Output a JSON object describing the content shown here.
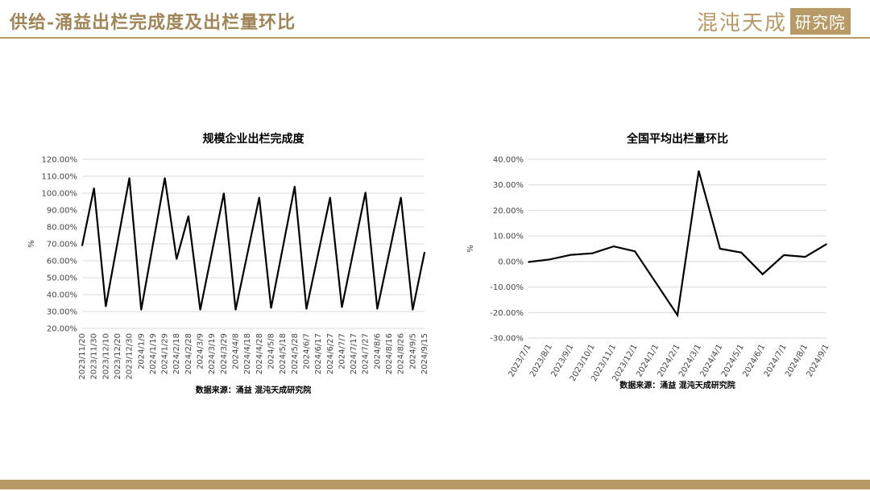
{
  "header": {
    "title": "供给-涌益出栏完成度及出栏量环比",
    "logo_text": "混沌天成",
    "logo_badge": "研究院"
  },
  "colors": {
    "accent": "#b89a66",
    "title": "#a08557",
    "line": "#000000"
  },
  "chart_data": [
    {
      "type": "line",
      "title": "规模企业出栏完成度",
      "ylabel": "%",
      "ylim": [
        20,
        120
      ],
      "yticks": [
        "20.00%",
        "30.00%",
        "40.00%",
        "50.00%",
        "60.00%",
        "70.00%",
        "80.00%",
        "90.00%",
        "100.00%",
        "110.00%",
        "120.00%"
      ],
      "categories": [
        "2023/11/20",
        "2023/11/30",
        "2023/12/10",
        "2023/12/20",
        "2023/12/30",
        "2024/1/9",
        "2024/1/19",
        "2024/1/29",
        "2024/2/18",
        "2024/2/28",
        "2024/3/9",
        "2024/3/19",
        "2024/3/29",
        "2024/4/8",
        "2024/4/18",
        "2024/4/28",
        "2024/5/8",
        "2024/5/18",
        "2024/5/28",
        "2024/6/7",
        "2024/6/17",
        "2024/6/27",
        "2024/7/7",
        "2024/7/17",
        "2024/7/27",
        "2024/8/6",
        "2024/8/16",
        "2024/8/26",
        "2024/9/5",
        "2024/9/15"
      ],
      "points": [
        {
          "x": "2023/11/20",
          "y": 69
        },
        {
          "x": "2023/11/30",
          "y": 103
        },
        {
          "x": "2023/12/10",
          "y": 33
        },
        {
          "x": "2023/12/30",
          "y": 109
        },
        {
          "x": "2024/1/9",
          "y": 31
        },
        {
          "x": "2024/1/29",
          "y": 109
        },
        {
          "x": "2024/2/18",
          "y": 61
        },
        {
          "x": "2024/2/28",
          "y": 86.5
        },
        {
          "x": "2024/3/9",
          "y": 31
        },
        {
          "x": "2024/3/29",
          "y": 100
        },
        {
          "x": "2024/4/8",
          "y": 31
        },
        {
          "x": "2024/4/28",
          "y": 97.5
        },
        {
          "x": "2024/5/8",
          "y": 32
        },
        {
          "x": "2024/5/28",
          "y": 104
        },
        {
          "x": "2024/6/7",
          "y": 31.5
        },
        {
          "x": "2024/6/27",
          "y": 97.5
        },
        {
          "x": "2024/7/7",
          "y": 32.5
        },
        {
          "x": "2024/7/27",
          "y": 100.5
        },
        {
          "x": "2024/8/6",
          "y": 31.5
        },
        {
          "x": "2024/8/26",
          "y": 97.5
        },
        {
          "x": "2024/9/5",
          "y": 31
        },
        {
          "x": "2024/9/15",
          "y": 65
        }
      ],
      "source": "数据来源：涌益 混沌天成研究院"
    },
    {
      "type": "line",
      "title": "全国平均出栏量环比",
      "ylabel": "%",
      "ylim": [
        -30,
        40
      ],
      "yticks": [
        "-30.00%",
        "-20.00%",
        "-10.00%",
        "0.00%",
        "10.00%",
        "20.00%",
        "30.00%",
        "40.00%"
      ],
      "categories": [
        "2023/7/1",
        "2023/8/1",
        "2023/9/1",
        "2023/10/1",
        "2023/11/1",
        "2023/12/1",
        "2024/1/1",
        "2024/2/1",
        "2024/3/1",
        "2024/4/1",
        "2024/5/1",
        "2024/6/1",
        "2024/7/1",
        "2024/8/1",
        "2024/9/1"
      ],
      "values": [
        -0.2,
        0.8,
        2.6,
        3.2,
        5.9,
        4.0,
        -8.5,
        -21.0,
        35.5,
        5.0,
        3.5,
        -5.0,
        2.5,
        1.8,
        6.8
      ],
      "source": "数据来源：涌益 混沌天成研究院"
    }
  ]
}
